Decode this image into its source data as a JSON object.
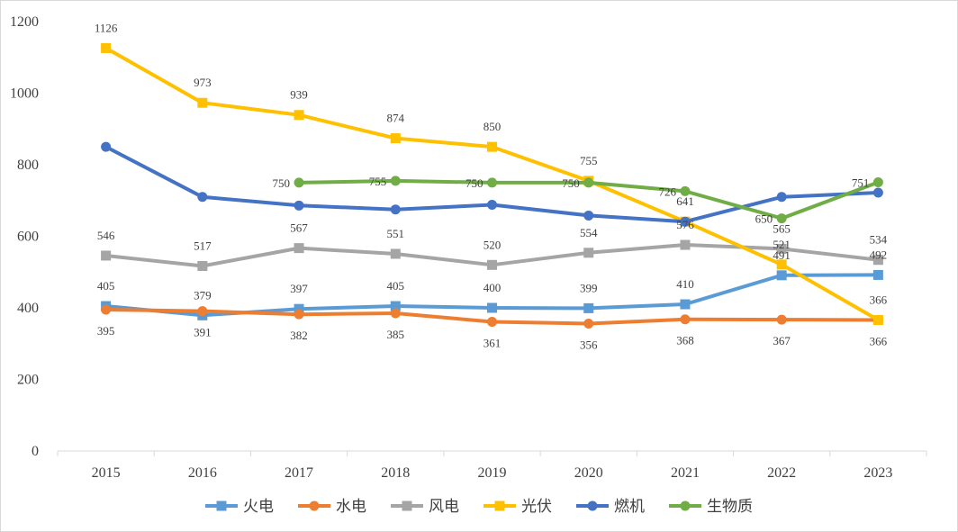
{
  "chart_data": {
    "type": "line",
    "title": "",
    "xlabel": "",
    "ylabel": "",
    "categories": [
      "2015",
      "2016",
      "2017",
      "2018",
      "2019",
      "2020",
      "2021",
      "2022",
      "2023"
    ],
    "ylim": [
      0,
      1200
    ],
    "yticks": [
      "0",
      "200",
      "400",
      "600",
      "800",
      "1000",
      "1200"
    ],
    "grid": false,
    "legend_position": "bottom",
    "series": [
      {
        "name": "火电",
        "color": "#5B9BD5",
        "marker": "square",
        "values": [
          405,
          379,
          397,
          405,
          400,
          399,
          410,
          491,
          492
        ],
        "labels": [
          "405",
          "379",
          "397",
          "405",
          "400",
          "399",
          "410",
          "491",
          "492"
        ]
      },
      {
        "name": "水电",
        "color": "#ED7D31",
        "marker": "circle",
        "values": [
          395,
          391,
          382,
          385,
          361,
          356,
          368,
          367,
          366
        ],
        "labels": [
          "395",
          "391",
          "382",
          "385",
          "361",
          "356",
          "368",
          "367",
          "366"
        ]
      },
      {
        "name": "风电",
        "color": "#A5A5A5",
        "marker": "square",
        "values": [
          546,
          517,
          567,
          551,
          520,
          554,
          576,
          565,
          534
        ],
        "labels": [
          "546",
          "517",
          "567",
          "551",
          "520",
          "554",
          "576",
          "565",
          "534"
        ]
      },
      {
        "name": "光伏",
        "color": "#FFC000",
        "marker": "square",
        "values": [
          1126,
          973,
          939,
          874,
          850,
          755,
          641,
          521,
          366
        ],
        "labels": [
          "1126",
          "973",
          "939",
          "874",
          "850",
          "755",
          "641",
          "521",
          "366"
        ]
      },
      {
        "name": "燃机",
        "color": "#4472C4",
        "marker": "circle",
        "values": [
          850,
          710,
          686,
          675,
          688,
          658,
          641,
          710,
          722
        ],
        "labels": [
          null,
          null,
          null,
          null,
          null,
          null,
          null,
          null,
          null
        ]
      },
      {
        "name": "生物质",
        "color": "#70AD47",
        "marker": "circle",
        "values": [
          null,
          null,
          750,
          755,
          750,
          750,
          726,
          650,
          751
        ],
        "labels": [
          null,
          null,
          "750",
          "755",
          "750",
          "750",
          "726",
          "650",
          "751"
        ]
      }
    ]
  }
}
